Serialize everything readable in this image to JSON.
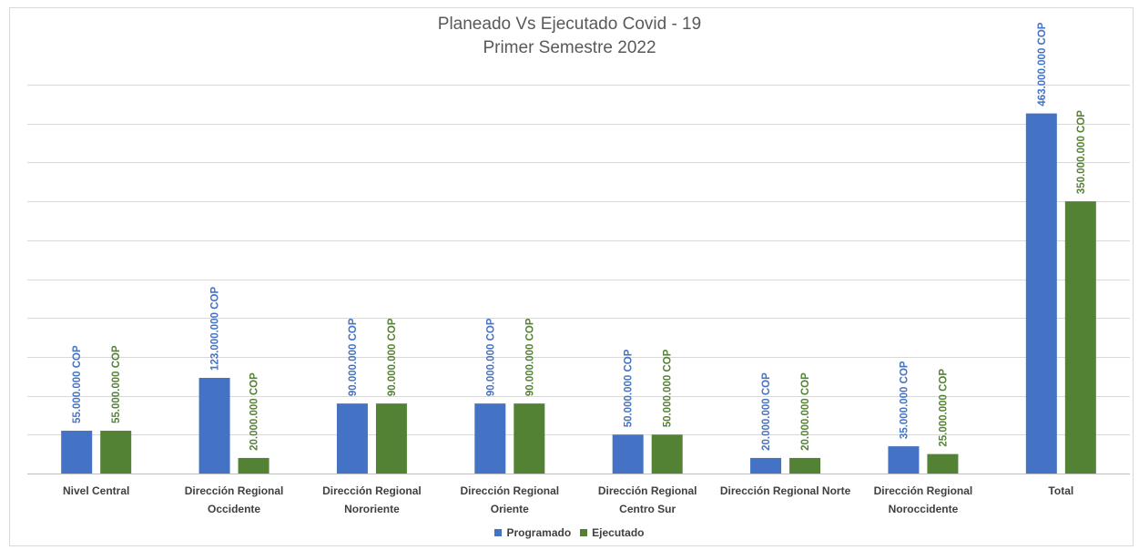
{
  "chart_data": {
    "type": "bar",
    "title": "Planeado Vs Ejecutado Covid - 19",
    "subtitle": "Primer Semestre 2022",
    "categories": [
      [
        "Nivel Central"
      ],
      [
        "Dirección Regional",
        "Occidente"
      ],
      [
        "Dirección Regional",
        "Nororiente"
      ],
      [
        "Dirección Regional",
        "Oriente"
      ],
      [
        "Dirección Regional",
        "Centro Sur"
      ],
      [
        "Dirección Regional Norte"
      ],
      [
        "Dirección Regional",
        "Noroccidente"
      ],
      [
        "Total"
      ]
    ],
    "series": [
      {
        "name": "Programado",
        "color": "#4472c4",
        "values": [
          55000000,
          123000000,
          90000000,
          90000000,
          50000000,
          20000000,
          35000000,
          463000000
        ],
        "labels": [
          "55.000.000 COP",
          "123.000.000 COP",
          "90.000.000 COP",
          "90.000.000 COP",
          "50.000.000 COP",
          "20.000.000 COP",
          "35.000.000 COP",
          "463.000.000 COP"
        ]
      },
      {
        "name": "Ejecutado",
        "color": "#548235",
        "values": [
          55000000,
          20000000,
          90000000,
          90000000,
          50000000,
          20000000,
          25000000,
          350000000
        ],
        "labels": [
          "55.000.000 COP",
          "20.000.000 COP",
          "90.000.000 COP",
          "90.000.000 COP",
          "50.000.000 COP",
          "20.000.000 COP",
          "25.000.000 COP",
          "350.000.000 COP"
        ]
      }
    ],
    "ylim": [
      0,
      500000000
    ],
    "y_gridline_step": 50000000,
    "grid": true,
    "legend_position": "bottom",
    "xlabel": "",
    "ylabel": ""
  }
}
